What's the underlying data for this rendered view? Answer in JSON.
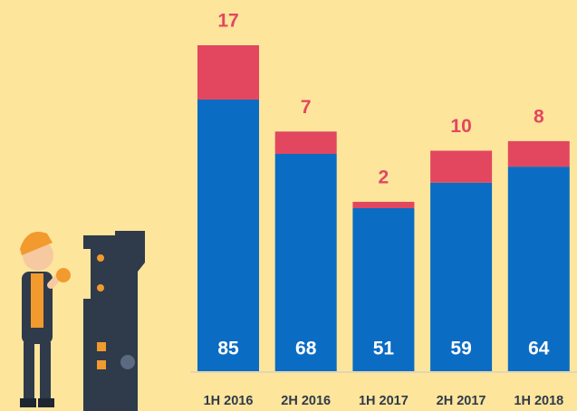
{
  "chart_data": {
    "type": "stacked-bar",
    "categories": [
      "1H 2016",
      "2H 2016",
      "1H 2017",
      "2H 2017",
      "1H 2018"
    ],
    "series": [
      {
        "color": "#0b6cc3",
        "values": [
          85,
          68,
          51,
          59,
          64
        ]
      },
      {
        "color": "#e2475f",
        "values": [
          17,
          7,
          2,
          10,
          8
        ]
      }
    ]
  }
}
